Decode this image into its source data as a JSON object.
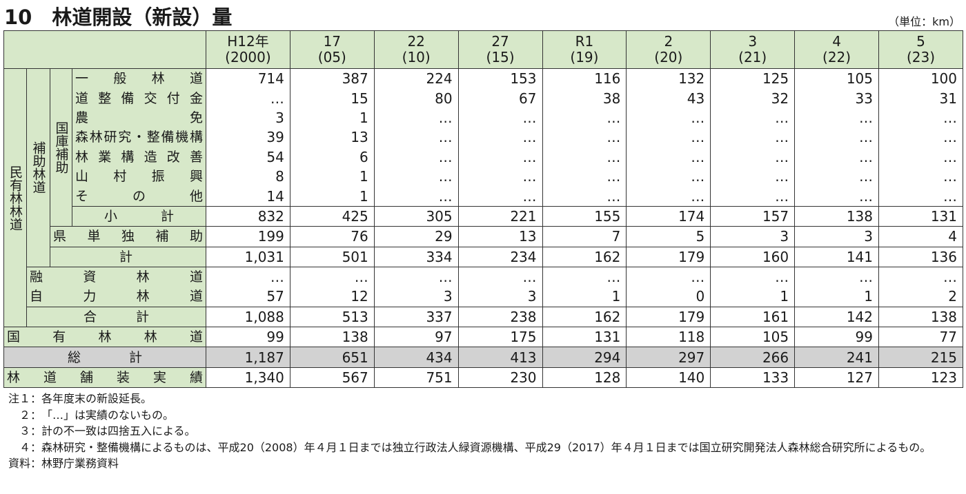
{
  "title": "10　林道開設（新設）量",
  "unit": "（単位：km）",
  "table": {
    "columns": [
      {
        "label": "H12年",
        "sub": "(2000)"
      },
      {
        "label": "17",
        "sub": "(05)"
      },
      {
        "label": "22",
        "sub": "(10)"
      },
      {
        "label": "27",
        "sub": "(15)"
      },
      {
        "label": "R1",
        "sub": "(19)"
      },
      {
        "label": "2",
        "sub": "(20)"
      },
      {
        "label": "3",
        "sub": "(21)"
      },
      {
        "label": "4",
        "sub": "(22)"
      },
      {
        "label": "5",
        "sub": "(23)"
      }
    ],
    "groups": [
      "民有林林道",
      "補助林道",
      "国庫補助"
    ],
    "rows": [
      {
        "label": "一般林道",
        "values": [
          "714",
          "387",
          "224",
          "153",
          "116",
          "132",
          "125",
          "105",
          "100"
        ]
      },
      {
        "label": "道整備交付金",
        "values": [
          "…",
          "15",
          "80",
          "67",
          "38",
          "43",
          "32",
          "33",
          "31"
        ]
      },
      {
        "label": "農免",
        "values": [
          "3",
          "1",
          "…",
          "…",
          "…",
          "…",
          "…",
          "…",
          "…"
        ]
      },
      {
        "label": "森林研究・整備機構",
        "values": [
          "39",
          "13",
          "…",
          "…",
          "…",
          "…",
          "…",
          "…",
          "…"
        ]
      },
      {
        "label": "林業構造改善",
        "values": [
          "54",
          "6",
          "…",
          "…",
          "…",
          "…",
          "…",
          "…",
          "…"
        ]
      },
      {
        "label": "山村振興",
        "values": [
          "8",
          "1",
          "…",
          "…",
          "…",
          "…",
          "…",
          "…",
          "…"
        ]
      },
      {
        "label": "その他",
        "values": [
          "14",
          "1",
          "…",
          "…",
          "…",
          "…",
          "…",
          "…",
          "…"
        ]
      },
      {
        "label": "小計",
        "values": [
          "832",
          "425",
          "305",
          "221",
          "155",
          "174",
          "157",
          "138",
          "131"
        ]
      },
      {
        "label": "県単独補助",
        "values": [
          "199",
          "76",
          "29",
          "13",
          "7",
          "5",
          "3",
          "3",
          "4"
        ]
      },
      {
        "label": "計",
        "values": [
          "1,031",
          "501",
          "334",
          "234",
          "162",
          "179",
          "160",
          "141",
          "136"
        ]
      },
      {
        "label": "融資林道",
        "values": [
          "…",
          "…",
          "…",
          "…",
          "…",
          "…",
          "…",
          "…",
          "…"
        ]
      },
      {
        "label": "自力林道",
        "values": [
          "57",
          "12",
          "3",
          "3",
          "1",
          "0",
          "1",
          "1",
          "2"
        ]
      },
      {
        "label": "合計",
        "values": [
          "1,088",
          "513",
          "337",
          "238",
          "162",
          "179",
          "161",
          "142",
          "138"
        ]
      },
      {
        "label": "国有林林道",
        "values": [
          "99",
          "138",
          "97",
          "175",
          "131",
          "118",
          "105",
          "99",
          "77"
        ]
      },
      {
        "label": "総計",
        "values": [
          "1,187",
          "651",
          "434",
          "413",
          "294",
          "297",
          "266",
          "241",
          "215"
        ]
      },
      {
        "label": "林道舗装実績",
        "values": [
          "1,340",
          "567",
          "751",
          "230",
          "128",
          "140",
          "133",
          "127",
          "123"
        ]
      }
    ]
  },
  "notes": [
    {
      "mark": "注１：",
      "text": "各年度末の新設延長。"
    },
    {
      "mark": "２：",
      "text": "「…」は実績のないもの。"
    },
    {
      "mark": "３：",
      "text": "計の不一致は四捨五入による。"
    },
    {
      "mark": "４：",
      "text": "森林研究・整備機構によるものは、平成20（2008）年４月１日までは独立行政法人緑資源機構、平成29（2017）年４月１日までは国立研究開発法人森林総合研究所によるもの。"
    }
  ],
  "source": {
    "mark": "資料：",
    "text": "林野庁業務資料"
  }
}
